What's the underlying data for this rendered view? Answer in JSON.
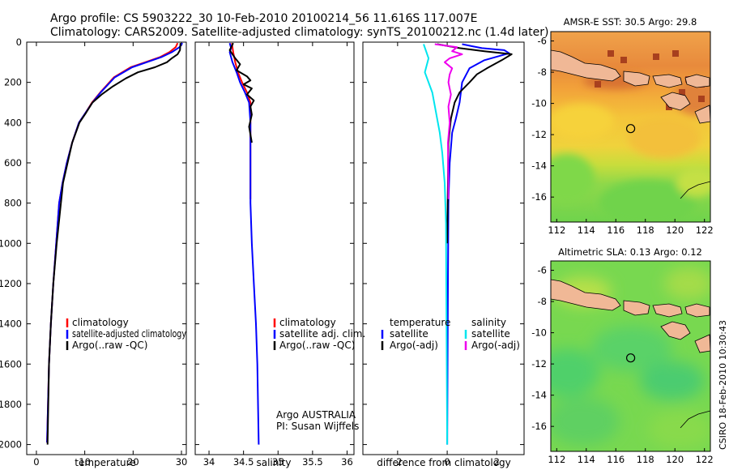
{
  "title": {
    "line1": "Argo profile: CS 5903222_30 10-Feb-2010 20100214_56 11.616S 117.007E",
    "line2": "Climatology: CARS2009. Satellite-adjusted climatology: synTS_20100212.nc (1.4d later)"
  },
  "colors": {
    "climatology": "#ff0000",
    "satellite": "#0000ff",
    "argo": "#000000",
    "sat_salinity": "#00e5ee",
    "argo_salinity": "#ee00ee",
    "land": "#f0b896"
  },
  "chart_data": [
    {
      "type": "line",
      "id": "temperature",
      "xlabel": "temperature",
      "ylabel": "",
      "xlim": [
        -2,
        31
      ],
      "ylim": [
        2050,
        0
      ],
      "xticks": [
        "0",
        "10",
        "20",
        "30"
      ],
      "xtick_values": [
        0,
        10,
        20,
        30
      ],
      "yticks": [
        "0",
        "200",
        "400",
        "600",
        "800",
        "1000",
        "1200",
        "1400",
        "1600",
        "1800",
        "2000"
      ],
      "ytick_values": [
        0,
        200,
        400,
        600,
        800,
        1000,
        1200,
        1400,
        1600,
        1800,
        2000
      ],
      "series": [
        {
          "name": "climatology",
          "color": "#ff0000",
          "x": [
            29.2,
            28.8,
            27.5,
            25.5,
            22.5,
            19.5,
            16,
            13.2,
            11.5,
            10.2,
            8.8,
            7.4,
            6.3,
            5.4,
            4.7,
            4.1,
            3.5,
            3.0,
            2.6,
            2.2
          ],
          "y": [
            5,
            25,
            50,
            75,
            100,
            125,
            175,
            250,
            300,
            350,
            400,
            500,
            600,
            700,
            800,
            1000,
            1200,
            1400,
            1600,
            1990
          ]
        },
        {
          "name": "satellite-adjusted climatology",
          "color": "#0000ff",
          "x": [
            30.2,
            29.6,
            28,
            25.8,
            22.8,
            19.8,
            16.2,
            13.3,
            11.6,
            10.2,
            8.8,
            7.4,
            6.3,
            5.4,
            4.7,
            4.1,
            3.5,
            3.0,
            2.6,
            2.2
          ],
          "y": [
            5,
            25,
            50,
            75,
            100,
            125,
            175,
            250,
            300,
            350,
            400,
            500,
            600,
            700,
            800,
            1000,
            1200,
            1400,
            1600,
            1990
          ]
        },
        {
          "name": "Argo(..raw -QC)",
          "color": "#000000",
          "x": [
            29.8,
            29.7,
            29.2,
            28,
            27,
            24.5,
            21,
            18.5,
            15.8,
            13.5,
            11.6,
            10.3,
            8.9,
            7.4,
            5.5,
            4.2,
            3.5,
            3.0,
            2.6,
            2.3
          ],
          "y": [
            5,
            40,
            60,
            80,
            100,
            125,
            150,
            180,
            220,
            260,
            300,
            350,
            400,
            500,
            700,
            1000,
            1200,
            1400,
            1600,
            2000
          ]
        }
      ],
      "legend_position": "bottom-right",
      "legend": [
        "climatology",
        "satellite-adjusted climatology",
        "Argo(..raw -QC)"
      ]
    },
    {
      "type": "line",
      "id": "salinity",
      "xlabel": "salinity",
      "xlim": [
        33.8,
        36.1
      ],
      "ylim": [
        2050,
        0
      ],
      "xticks": [
        "34",
        "34.5",
        "35",
        "35.5",
        "36"
      ],
      "xtick_values": [
        34,
        34.5,
        35,
        35.5,
        36
      ],
      "series": [
        {
          "name": "climatology",
          "color": "#ff0000",
          "x": [
            34.33,
            34.35,
            34.38,
            34.42,
            34.48,
            34.55,
            34.6,
            34.6
          ],
          "y": [
            5,
            50,
            100,
            150,
            200,
            250,
            300,
            780
          ]
        },
        {
          "name": "satellite adj. clim.",
          "color": "#0000ff",
          "x": [
            34.3,
            34.32,
            34.3,
            34.34,
            34.4,
            34.45,
            34.52,
            34.58,
            34.6,
            34.6,
            34.6,
            34.62,
            34.65,
            34.68,
            34.7,
            34.72
          ],
          "y": [
            5,
            30,
            50,
            100,
            150,
            200,
            250,
            300,
            400,
            600,
            800,
            1000,
            1200,
            1400,
            1600,
            2000
          ]
        },
        {
          "name": "Argo(..raw -QC)",
          "color": "#000000",
          "x": [
            34.35,
            34.3,
            34.38,
            34.45,
            34.4,
            34.55,
            34.6,
            34.5,
            34.62,
            34.55,
            34.65,
            34.6,
            34.62,
            34.58,
            34.62
          ],
          "y": [
            5,
            40,
            80,
            110,
            140,
            170,
            190,
            210,
            230,
            260,
            290,
            320,
            360,
            420,
            500
          ]
        }
      ],
      "legend_position": "bottom-right",
      "legend": [
        "climatology",
        "satellite adj. clim.",
        "Argo(..raw -QC)"
      ],
      "annotation": [
        "Argo AUSTRALIA",
        "PI: Susan Wijffels"
      ]
    },
    {
      "type": "line",
      "id": "difference",
      "xlabel": "difference from climatology",
      "xlim": [
        -3.4,
        3.1
      ],
      "ylim": [
        2050,
        0
      ],
      "xticks": [
        "-2",
        "0",
        "2"
      ],
      "xtick_values": [
        -2,
        0,
        2
      ],
      "series": [
        {
          "name": "temperature satellite",
          "color": "#0000ff",
          "x": [
            0.6,
            1.0,
            1.4,
            2.3,
            2.5,
            1.5,
            0.9,
            0.6,
            0.5,
            0.35,
            0.2,
            0.1,
            0.05,
            0.03,
            0.0
          ],
          "y": [
            10,
            20,
            30,
            40,
            55,
            90,
            130,
            200,
            300,
            380,
            450,
            600,
            800,
            1200,
            2000
          ]
        },
        {
          "name": "temperature Argo(-adj)",
          "color": "#000000",
          "x": [
            -0.4,
            0.5,
            1.5,
            2.6,
            2.2,
            1.6,
            1.2,
            0.9,
            0.5,
            0.3,
            0.15,
            0.05,
            0.02,
            0.0
          ],
          "y": [
            10,
            30,
            45,
            60,
            90,
            130,
            160,
            200,
            250,
            300,
            380,
            500,
            800,
            1000
          ]
        },
        {
          "name": "salinity satellite",
          "color": "#00e5ee",
          "x": [
            -0.95,
            -0.75,
            -0.9,
            -0.6,
            -0.45,
            -0.3,
            -0.2,
            -0.1,
            -0.05,
            0.0
          ],
          "y": [
            10,
            80,
            150,
            250,
            350,
            450,
            550,
            700,
            900,
            2000
          ]
        },
        {
          "name": "salinity Argo(-adj)",
          "color": "#ee00ee",
          "x": [
            -0.5,
            0.4,
            0.2,
            0.6,
            0.1,
            -0.1,
            0.2,
            0.1,
            0.05,
            0.15,
            0.05,
            0.1,
            0.03,
            0.05
          ],
          "y": [
            10,
            25,
            45,
            60,
            80,
            100,
            130,
            160,
            200,
            260,
            320,
            400,
            500,
            780
          ]
        }
      ],
      "legend_position": "bottom-left",
      "legend": [
        "temperature",
        "satellite",
        "Argo(-adj)",
        "salinity",
        "satellite",
        "Argo(-adj)"
      ]
    },
    {
      "type": "heatmap",
      "id": "sst-map",
      "title": "AMSR-E SST: 30.5 Argo: 29.8",
      "xticks": [
        "112",
        "114",
        "116",
        "118",
        "120",
        "122"
      ],
      "yticks": [
        "-6",
        "-8",
        "-10",
        "-12",
        "-14",
        "-16"
      ],
      "xlim": [
        111.6,
        122.4
      ],
      "ylim": [
        -17.6,
        -5.4
      ],
      "argo_position": {
        "lon": 117.007,
        "lat": -11.616
      }
    },
    {
      "type": "heatmap",
      "id": "sla-map",
      "title": "Altimetric SLA: 0.13 Argo: 0.12",
      "xticks": [
        "112",
        "114",
        "116",
        "118",
        "120",
        "122"
      ],
      "yticks": [
        "-6",
        "-8",
        "-10",
        "-12",
        "-14",
        "-16"
      ],
      "xlim": [
        111.6,
        122.4
      ],
      "ylim": [
        -17.6,
        -5.4
      ],
      "argo_position": {
        "lon": 117.007,
        "lat": -11.616
      }
    }
  ],
  "stamp": "CSIRO 18-Feb-2010 10:30:43"
}
